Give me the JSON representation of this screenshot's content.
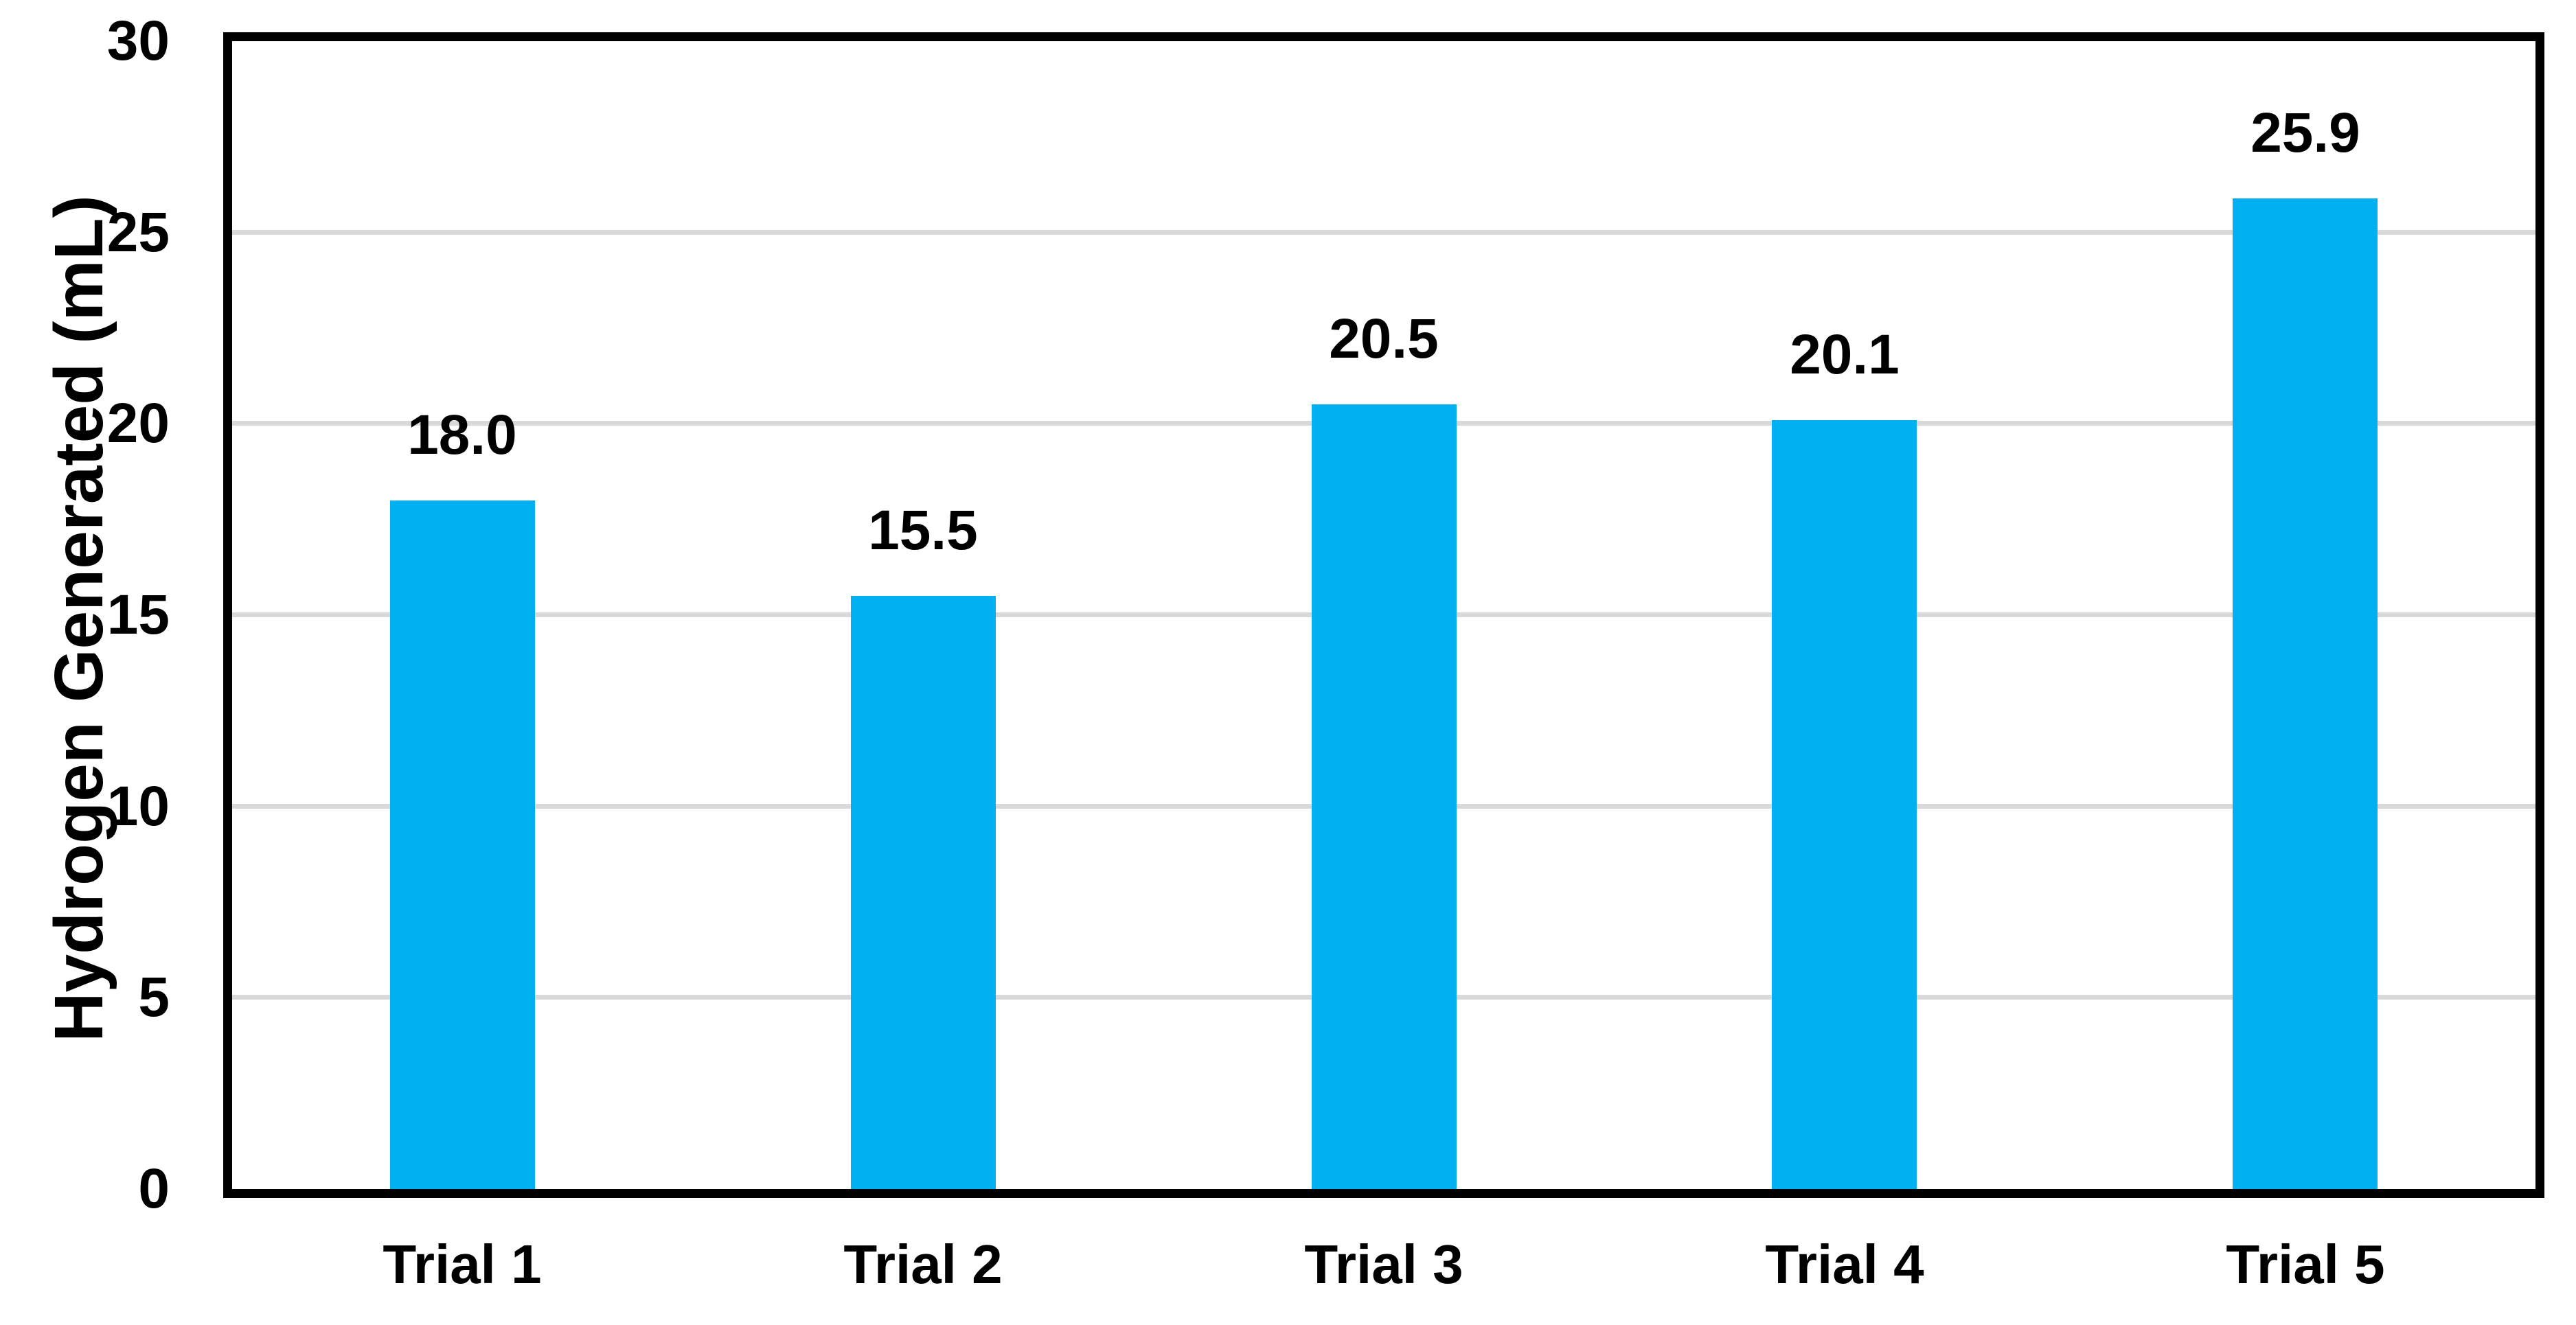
{
  "chart_data": {
    "type": "bar",
    "title": "",
    "categories": [
      "Trial 1",
      "Trial 2",
      "Trial 3",
      "Trial 4",
      "Trial 5"
    ],
    "values": [
      18.0,
      15.5,
      20.5,
      20.1,
      25.9
    ],
    "data_labels": [
      "18.0",
      "15.5",
      "20.5",
      "20.1",
      "25.9"
    ],
    "xlabel": "",
    "ylabel": "Hydrogen Generated (mL)",
    "ylim": [
      0,
      30
    ],
    "yticks": [
      0,
      5,
      10,
      15,
      20,
      25,
      30
    ],
    "ytick_labels": [
      "0",
      "5",
      "10",
      "15",
      "20",
      "25",
      "30"
    ],
    "grid": "horizontal-only",
    "legend": "none",
    "colors": {
      "bar": "#00B0F0",
      "gridline": "#D9D9D9",
      "axis_border": "#000000",
      "text": "#000000",
      "background": "#FFFFFF"
    }
  }
}
